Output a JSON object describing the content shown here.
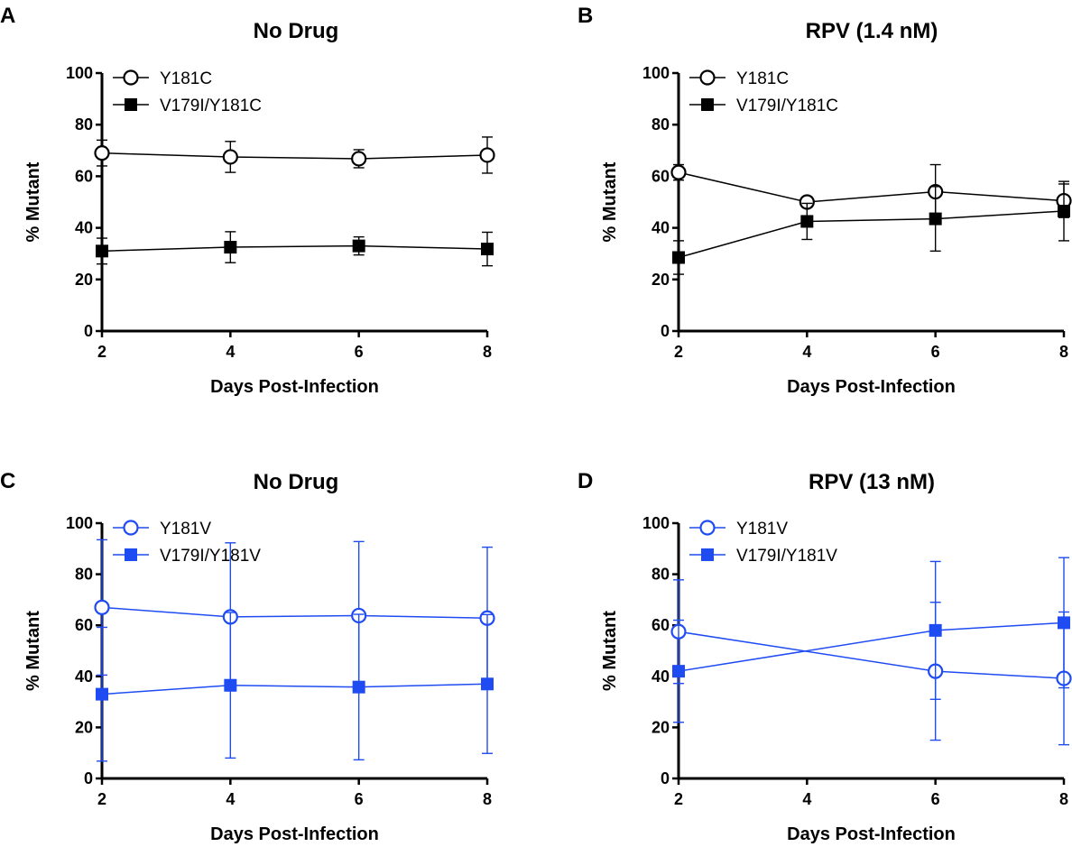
{
  "figure": {
    "panels": [
      "A",
      "B",
      "C",
      "D"
    ]
  },
  "chart_data": [
    {
      "type": "line",
      "panel": "A",
      "title": "No Drug",
      "xlabel": "Days Post-Infection",
      "ylabel": "% Mutant",
      "xlim": [
        2,
        8
      ],
      "ylim": [
        0,
        100
      ],
      "xticks": [
        2,
        4,
        6,
        8
      ],
      "yticks": [
        0,
        20,
        40,
        60,
        80,
        100
      ],
      "color": "#000000",
      "legend_position": "top-left",
      "series": [
        {
          "name": "Y181C",
          "marker": "open-circle",
          "x": [
            2,
            4,
            6,
            8
          ],
          "y": [
            69,
            67.5,
            66.8,
            68.2
          ],
          "err": [
            5,
            6,
            3.5,
            7
          ]
        },
        {
          "name": "V179I/Y181C",
          "marker": "filled-square",
          "x": [
            2,
            4,
            6,
            8
          ],
          "y": [
            31,
            32.5,
            33,
            31.8
          ],
          "err": [
            5,
            6,
            3.5,
            6.5
          ]
        }
      ]
    },
    {
      "type": "line",
      "panel": "B",
      "title": "RPV (1.4 nM)",
      "xlabel": "Days Post-Infection",
      "ylabel": "% Mutant",
      "xlim": [
        2,
        8
      ],
      "ylim": [
        0,
        100
      ],
      "xticks": [
        2,
        4,
        6,
        8
      ],
      "yticks": [
        0,
        20,
        40,
        60,
        80,
        100
      ],
      "color": "#000000",
      "legend_position": "top-left",
      "series": [
        {
          "name": "Y181C",
          "marker": "open-circle",
          "x": [
            2,
            4,
            6,
            8
          ],
          "y": [
            61.5,
            50,
            54,
            50.5
          ],
          "err": [
            3,
            2,
            10.5,
            6.5
          ]
        },
        {
          "name": "V179I/Y181C",
          "marker": "filled-square",
          "x": [
            2,
            4,
            6,
            8
          ],
          "y": [
            28.5,
            42.5,
            43.5,
            46.5
          ],
          "err": [
            6.5,
            7,
            12.5,
            11.5
          ]
        }
      ]
    },
    {
      "type": "line",
      "panel": "C",
      "title": "No Drug",
      "xlabel": "Days Post-Infection",
      "ylabel": "% Mutant",
      "xlim": [
        2,
        8
      ],
      "ylim": [
        0,
        100
      ],
      "xticks": [
        2,
        4,
        6,
        8
      ],
      "yticks": [
        0,
        20,
        40,
        60,
        80,
        100
      ],
      "color": "#1f4cf2",
      "legend_position": "top-left",
      "series": [
        {
          "name": "Y181V",
          "marker": "open-circle",
          "x": [
            2,
            4,
            6,
            8
          ],
          "y": [
            67,
            63.3,
            63.8,
            62.8
          ],
          "err": [
            26.5,
            29,
            29,
            27.8
          ]
        },
        {
          "name": "V179I/Y181V",
          "marker": "filled-square",
          "x": [
            2,
            4,
            6,
            8
          ],
          "y": [
            33,
            36.5,
            35.8,
            37
          ],
          "err": [
            26.2,
            28.5,
            28.5,
            27.2
          ]
        }
      ]
    },
    {
      "type": "line",
      "panel": "D",
      "title": "RPV (13 nM)",
      "xlabel": "Days Post-Infection",
      "ylabel": "% Mutant",
      "xlim": [
        2,
        8
      ],
      "ylim": [
        0,
        100
      ],
      "xticks": [
        2,
        4,
        6,
        8
      ],
      "yticks": [
        0,
        20,
        40,
        60,
        80,
        100
      ],
      "color": "#1f4cf2",
      "legend_position": "top-left",
      "series": [
        {
          "name": "Y181V",
          "marker": "open-circle",
          "x": [
            2,
            6,
            8
          ],
          "y": [
            57.5,
            42,
            39.2
          ],
          "err": [
            20.3,
            27,
            26
          ]
        },
        {
          "name": "V179I/Y181V",
          "marker": "filled-square",
          "x": [
            2,
            6,
            8
          ],
          "y": [
            42,
            58,
            61
          ],
          "err": [
            20,
            27,
            25.5
          ]
        }
      ]
    }
  ]
}
